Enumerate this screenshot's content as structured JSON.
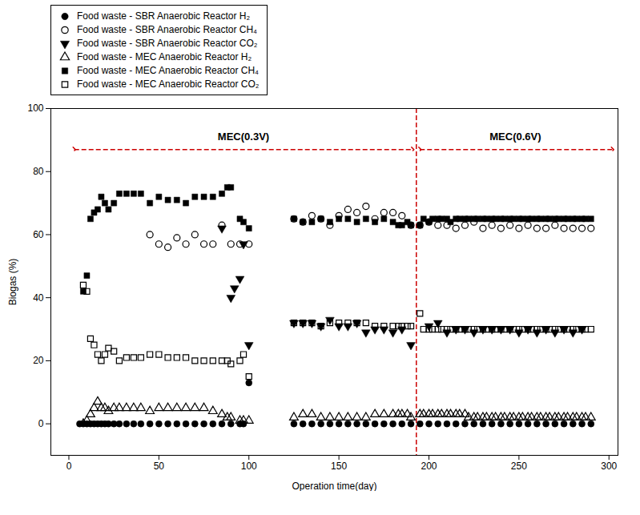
{
  "chart_data": {
    "type": "scatter",
    "xlabel": "Operation time(day)",
    "ylabel": "Biogas (%)",
    "xlim": [
      -10,
      305
    ],
    "ylim": [
      -10,
      100
    ],
    "xticks": [
      0,
      50,
      100,
      150,
      200,
      250,
      300
    ],
    "yticks": [
      0,
      20,
      40,
      60,
      80,
      100
    ],
    "grid": false,
    "legend": "top",
    "series": [
      {
        "name": "Food waste - SBR Anaerobic Reactor H₂",
        "color": "#000000",
        "marker": "circle",
        "x": [
          6,
          8,
          10,
          12,
          14,
          16,
          18,
          20,
          22,
          25,
          28,
          32,
          36,
          40,
          45,
          50,
          55,
          60,
          65,
          70,
          75,
          80,
          85,
          90,
          95,
          97,
          100,
          125,
          130,
          135,
          140,
          145,
          150,
          155,
          160,
          165,
          170,
          175,
          180,
          185,
          190,
          195,
          200,
          205,
          210,
          215,
          220,
          225,
          230,
          235,
          240,
          245,
          250,
          255,
          260,
          265,
          270,
          275,
          280,
          285,
          290
        ],
        "values": [
          0,
          0,
          0,
          0,
          0,
          0,
          0,
          0,
          0,
          0,
          0,
          0,
          0,
          0,
          0,
          0,
          0,
          0,
          0,
          0,
          0,
          0,
          0,
          0,
          0,
          0,
          13,
          0,
          0,
          0,
          0,
          0,
          0,
          0,
          0,
          0,
          0,
          0,
          0,
          0,
          0,
          0,
          0,
          0,
          0,
          0,
          0,
          0,
          0,
          0,
          0,
          0,
          0,
          0,
          0,
          0,
          0,
          0,
          0,
          0,
          0
        ]
      },
      {
        "name": "Food waste - SBR Anaerobic Reactor CH₄",
        "color": "#000000",
        "marker": "open_circle",
        "x": [
          45,
          50,
          55,
          60,
          65,
          70,
          75,
          80,
          85,
          90,
          95,
          100,
          125,
          130,
          135,
          140,
          145,
          150,
          155,
          160,
          165,
          170,
          175,
          180,
          185,
          190,
          195,
          200,
          205,
          210,
          215,
          220,
          225,
          230,
          235,
          240,
          245,
          250,
          255,
          260,
          265,
          270,
          275,
          280,
          285,
          290
        ],
        "values": [
          60,
          57,
          56,
          59,
          57,
          60,
          57,
          57,
          63,
          57,
          57,
          57,
          65,
          64,
          66,
          65,
          63,
          66,
          68,
          67,
          69,
          65,
          67,
          67,
          66,
          63,
          63,
          64,
          63,
          63,
          62,
          63,
          64,
          62,
          63,
          62,
          63,
          62,
          63,
          62,
          62,
          63,
          62,
          62,
          62,
          62
        ]
      },
      {
        "name": "Food waste - SBR Anaerobic Reactor CO₂",
        "color": "#000000",
        "marker": "triangle_down",
        "x": [
          85,
          90,
          92,
          95,
          97,
          100,
          125,
          130,
          135,
          140,
          145,
          150,
          155,
          160,
          165,
          170,
          175,
          180,
          185,
          190,
          200,
          205,
          210,
          215,
          220,
          225,
          230,
          235,
          240,
          245,
          250,
          255,
          260,
          265,
          270,
          275,
          280,
          285
        ],
        "values": [
          62,
          40,
          43,
          46,
          57,
          25,
          32,
          32,
          32,
          31,
          33,
          31,
          31,
          32,
          29,
          30,
          30,
          29,
          30,
          25,
          31,
          32,
          29,
          30,
          30,
          29,
          30,
          30,
          30,
          30,
          29,
          30,
          29,
          30,
          29,
          30,
          29,
          30
        ]
      },
      {
        "name": "Food waste - MEC Anaerobic Reactor H₂",
        "color": "#000000",
        "marker": "open_triangle_up",
        "x": [
          8,
          10,
          12,
          14,
          16,
          18,
          20,
          22,
          25,
          28,
          32,
          36,
          40,
          45,
          50,
          55,
          60,
          65,
          70,
          75,
          80,
          85,
          88,
          90,
          95,
          97,
          100,
          125,
          130,
          135,
          140,
          145,
          150,
          155,
          160,
          165,
          170,
          175,
          180,
          183,
          185,
          188,
          190,
          195,
          197,
          200,
          202,
          205,
          207,
          210,
          212,
          215,
          217,
          220,
          222,
          225,
          227,
          230,
          232,
          235,
          237,
          240,
          242,
          245,
          247,
          250,
          252,
          255,
          257,
          260,
          262,
          265,
          267,
          270,
          272,
          275,
          277,
          280,
          282,
          285,
          287,
          290
        ],
        "values": [
          0,
          1,
          3,
          5,
          7,
          5,
          5,
          4,
          5,
          5,
          5,
          5,
          5,
          4,
          5,
          5,
          5,
          5,
          5,
          5,
          4,
          3,
          2,
          2,
          1,
          1,
          1,
          2,
          3,
          3,
          2,
          2,
          2,
          2,
          2,
          2,
          3,
          3,
          3,
          3,
          3,
          3,
          2,
          3,
          3,
          3,
          3,
          3,
          3,
          3,
          3,
          3,
          3,
          3,
          2,
          2,
          2,
          2,
          2,
          2,
          2,
          2,
          2,
          2,
          2,
          2,
          2,
          2,
          2,
          2,
          2,
          2,
          2,
          2,
          2,
          2,
          2,
          2,
          2,
          2,
          2,
          2
        ]
      },
      {
        "name": "Food waste - MEC Anaerobic Reactor CH₄",
        "color": "#000000",
        "marker": "square",
        "x": [
          8,
          10,
          12,
          14,
          16,
          18,
          20,
          22,
          25,
          28,
          32,
          36,
          40,
          45,
          50,
          55,
          60,
          65,
          70,
          75,
          80,
          85,
          88,
          90,
          95,
          97,
          100,
          125,
          130,
          135,
          140,
          145,
          150,
          155,
          160,
          165,
          170,
          175,
          180,
          183,
          185,
          188,
          190,
          195,
          197,
          200,
          202,
          205,
          207,
          210,
          212,
          215,
          217,
          220,
          222,
          225,
          227,
          230,
          232,
          235,
          237,
          240,
          242,
          245,
          247,
          250,
          252,
          255,
          257,
          260,
          262,
          265,
          267,
          270,
          272,
          275,
          277,
          280,
          282,
          285,
          287,
          290
        ],
        "values": [
          42,
          47,
          65,
          67,
          68,
          72,
          70,
          68,
          70,
          73,
          73,
          73,
          73,
          70,
          72,
          71,
          71,
          70,
          72,
          72,
          72,
          73,
          75,
          75,
          65,
          64,
          62,
          65,
          64,
          64,
          65,
          64,
          65,
          65,
          64,
          65,
          64,
          65,
          64,
          63,
          63,
          64,
          63,
          63,
          65,
          64,
          65,
          65,
          65,
          65,
          64,
          65,
          65,
          65,
          65,
          65,
          65,
          65,
          65,
          65,
          65,
          65,
          65,
          65,
          65,
          65,
          65,
          65,
          65,
          65,
          65,
          65,
          65,
          65,
          65,
          65,
          65,
          65,
          65,
          65,
          65,
          65
        ]
      },
      {
        "name": "Food waste - MEC Anaerobic Reactor CO₂",
        "color": "#000000",
        "marker": "open_square",
        "x": [
          8,
          10,
          12,
          14,
          16,
          18,
          20,
          22,
          25,
          28,
          32,
          36,
          40,
          45,
          50,
          55,
          60,
          65,
          70,
          75,
          80,
          85,
          88,
          90,
          95,
          97,
          100,
          125,
          130,
          135,
          140,
          145,
          150,
          155,
          160,
          165,
          170,
          175,
          180,
          183,
          185,
          188,
          190,
          195,
          197,
          200,
          202,
          205,
          207,
          210,
          212,
          215,
          217,
          220,
          222,
          225,
          227,
          230,
          232,
          235,
          237,
          240,
          242,
          245,
          247,
          250,
          252,
          255,
          257,
          260,
          262,
          265,
          267,
          270,
          272,
          275,
          277,
          280,
          282,
          285,
          287,
          290
        ],
        "values": [
          44,
          42,
          27,
          25,
          22,
          20,
          22,
          24,
          23,
          20,
          21,
          21,
          21,
          22,
          22,
          21,
          21,
          21,
          20,
          20,
          20,
          20,
          20,
          19,
          20,
          22,
          15,
          32,
          32,
          32,
          31,
          32,
          32,
          32,
          32,
          32,
          31,
          31,
          31,
          31,
          31,
          31,
          31,
          35,
          30,
          30,
          30,
          30,
          30,
          30,
          30,
          30,
          30,
          30,
          30,
          30,
          30,
          30,
          30,
          30,
          30,
          30,
          30,
          30,
          30,
          30,
          30,
          30,
          30,
          30,
          30,
          30,
          30,
          30,
          30,
          30,
          30,
          30,
          30,
          30,
          30,
          30
        ]
      }
    ],
    "vlines": [
      {
        "x": 193,
        "color": "#cc0000",
        "line_style": "dashed"
      }
    ],
    "arrows": [
      {
        "x1": 3,
        "x2": 191,
        "y": 87,
        "color": "#cc0000",
        "line_style": "dashed"
      },
      {
        "x1": 195,
        "x2": 302,
        "y": 87,
        "color": "#cc0000",
        "line_style": "dashed"
      }
    ],
    "annotations": [
      {
        "text": "MEC(0.3V)",
        "x": 97,
        "y": 90
      },
      {
        "text": "MEC(0.6V)",
        "x": 248,
        "y": 90
      }
    ]
  }
}
